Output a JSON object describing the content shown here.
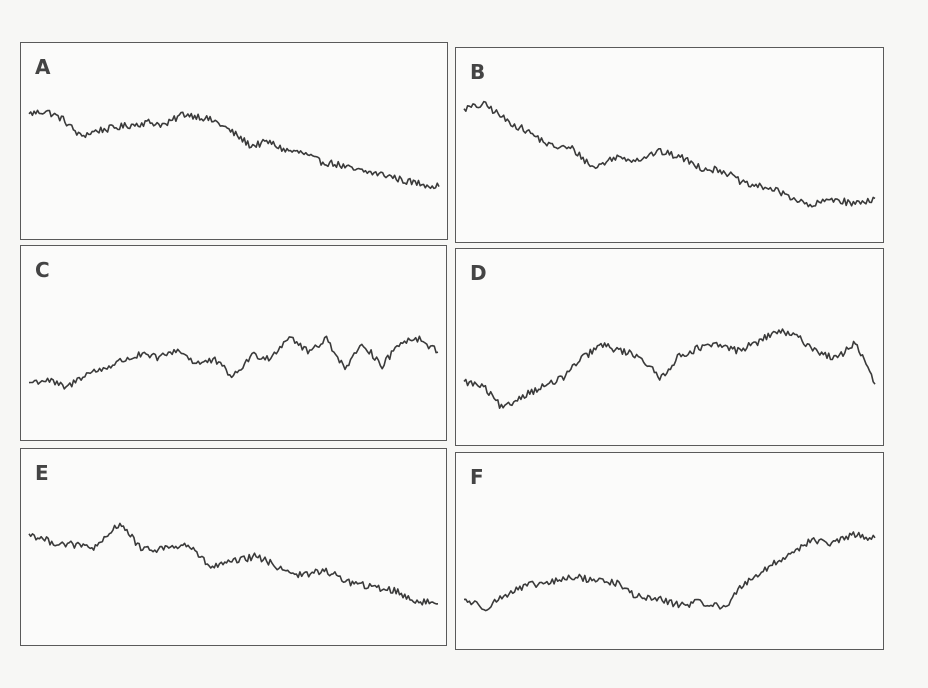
{
  "chart_data": [
    {
      "type": "line",
      "title": "A",
      "color": "#3a3a3a",
      "y": [
        0.78,
        0.8,
        0.74,
        0.62,
        0.66,
        0.68,
        0.7,
        0.72,
        0.7,
        0.78,
        0.76,
        0.72,
        0.64,
        0.55,
        0.58,
        0.52,
        0.5,
        0.44,
        0.42,
        0.38,
        0.36,
        0.34,
        0.3,
        0.28,
        0.26
      ]
    },
    {
      "type": "line",
      "title": "B",
      "color": "#3a3a3a",
      "y": [
        0.85,
        0.88,
        0.76,
        0.68,
        0.58,
        0.56,
        0.42,
        0.5,
        0.48,
        0.54,
        0.5,
        0.42,
        0.4,
        0.3,
        0.28,
        0.22,
        0.14,
        0.2,
        0.16,
        0.2
      ]
    },
    {
      "type": "line",
      "title": "C",
      "color": "#3a3a3a",
      "y": [
        0.3,
        0.32,
        0.26,
        0.36,
        0.4,
        0.46,
        0.5,
        0.48,
        0.54,
        0.44,
        0.46,
        0.34,
        0.5,
        0.48,
        0.64,
        0.52,
        0.62,
        0.4,
        0.58,
        0.42,
        0.6,
        0.62,
        0.52
      ]
    },
    {
      "type": "line",
      "title": "D",
      "color": "#3a3a3a",
      "y": [
        0.34,
        0.3,
        0.14,
        0.24,
        0.3,
        0.36,
        0.5,
        0.6,
        0.56,
        0.52,
        0.36,
        0.52,
        0.58,
        0.6,
        0.56,
        0.62,
        0.7,
        0.66,
        0.56,
        0.5,
        0.62,
        0.32
      ]
    },
    {
      "type": "line",
      "title": "E",
      "color": "#3a3a3a",
      "y": [
        0.68,
        0.62,
        0.6,
        0.58,
        0.76,
        0.56,
        0.58,
        0.6,
        0.44,
        0.48,
        0.52,
        0.44,
        0.38,
        0.42,
        0.34,
        0.3,
        0.28,
        0.2,
        0.18
      ]
    },
    {
      "type": "line",
      "title": "F",
      "color": "#3a3a3a",
      "y": [
        0.24,
        0.18,
        0.28,
        0.34,
        0.36,
        0.4,
        0.38,
        0.36,
        0.26,
        0.24,
        0.2,
        0.22,
        0.18,
        0.36,
        0.46,
        0.56,
        0.66,
        0.64,
        0.7,
        0.68
      ]
    }
  ]
}
